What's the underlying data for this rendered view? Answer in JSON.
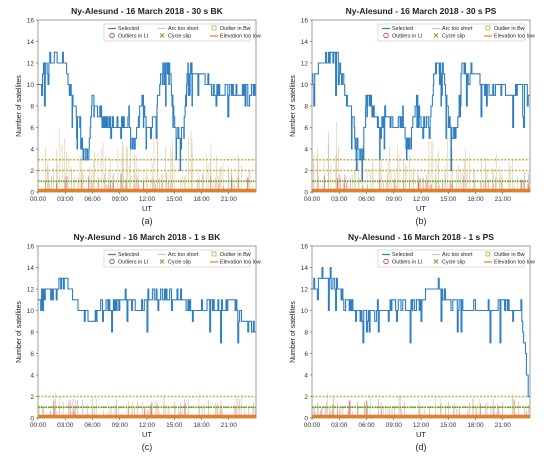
{
  "chart_data": [
    {
      "type": "line",
      "title": "Ny-Alesund - 16 March 2018 - 30 s BK",
      "panel_label": "(a)",
      "xlabel": "UT",
      "ylabel": "Number of satellites",
      "ylim": [
        0,
        16
      ],
      "xlim": [
        0,
        24
      ],
      "xticks": [
        "00:00",
        "03:00",
        "06:00",
        "09:00",
        "12:00",
        "15:00",
        "18:00",
        "21:00"
      ],
      "yticks": [
        0,
        2,
        4,
        6,
        8,
        10,
        12,
        14,
        16
      ],
      "legend": {
        "position": "top-right",
        "entries": [
          "Selected",
          "Arc too short",
          "Outlier in Bw",
          "Outliers in LI",
          "Cycle slip",
          "Elevation too low"
        ]
      },
      "selected_series": [
        [
          0,
          10
        ],
        [
          1,
          12
        ],
        [
          2,
          13
        ],
        [
          3,
          12
        ],
        [
          3.5,
          10
        ],
        [
          4,
          8
        ],
        [
          4.5,
          7
        ],
        [
          5,
          4
        ],
        [
          5.5,
          3
        ],
        [
          6,
          9
        ],
        [
          6.5,
          8
        ],
        [
          7,
          7
        ],
        [
          7.5,
          6
        ],
        [
          8,
          7
        ],
        [
          9,
          6
        ],
        [
          10,
          7
        ],
        [
          10.5,
          4
        ],
        [
          11,
          6
        ],
        [
          11.5,
          9
        ],
        [
          12,
          6
        ],
        [
          13,
          7
        ],
        [
          13.5,
          11
        ],
        [
          14,
          12
        ],
        [
          14.5,
          11
        ],
        [
          15,
          7
        ],
        [
          15.5,
          5
        ],
        [
          16,
          6
        ],
        [
          16.5,
          12
        ],
        [
          17,
          11
        ],
        [
          18,
          11
        ],
        [
          19,
          10
        ],
        [
          20,
          9
        ],
        [
          21,
          10
        ],
        [
          22,
          9
        ],
        [
          23,
          10
        ],
        [
          24,
          9
        ]
      ],
      "arc_too_short_series": [
        [
          0,
          3
        ],
        [
          1,
          4
        ],
        [
          2,
          5
        ],
        [
          3,
          6
        ],
        [
          4,
          2
        ],
        [
          5,
          3
        ],
        [
          6,
          4
        ],
        [
          7,
          5
        ],
        [
          8,
          3
        ],
        [
          9,
          4
        ],
        [
          10,
          6
        ],
        [
          11,
          3
        ],
        [
          12,
          2
        ],
        [
          13,
          5
        ],
        [
          14,
          4
        ],
        [
          15,
          6
        ],
        [
          16,
          3
        ],
        [
          17,
          5
        ],
        [
          18,
          2
        ],
        [
          19,
          4
        ],
        [
          20,
          3
        ],
        [
          21,
          2
        ],
        [
          22,
          3
        ],
        [
          23,
          2
        ],
        [
          24,
          1
        ]
      ],
      "outlier_bw_level": [
        3,
        2
      ],
      "cycle_slip_level": 1,
      "elevation_too_low_level": 0
    },
    {
      "type": "line",
      "title": "Ny-Alesund - 16 March 2018 - 30 s PS",
      "panel_label": "(b)",
      "xlabel": "UT",
      "ylabel": "Number of satellites",
      "ylim": [
        0,
        16
      ],
      "xlim": [
        0,
        24
      ],
      "xticks": [
        "00:00",
        "03:00",
        "06:00",
        "09:00",
        "12:00",
        "15:00",
        "18:00",
        "21:00"
      ],
      "yticks": [
        0,
        2,
        4,
        6,
        8,
        10,
        12,
        14,
        16
      ],
      "legend": {
        "position": "top-right",
        "entries": [
          "Selected",
          "Arc too short",
          "Outlier in Bw",
          "Outliers in LI",
          "Cycle slip",
          "Elevation too low"
        ]
      },
      "selected_series": [
        [
          0,
          10
        ],
        [
          1,
          12
        ],
        [
          2,
          13
        ],
        [
          3,
          12
        ],
        [
          3.5,
          10
        ],
        [
          4,
          8
        ],
        [
          4.5,
          7
        ],
        [
          5,
          4
        ],
        [
          5.5,
          3
        ],
        [
          6,
          9
        ],
        [
          6.5,
          8
        ],
        [
          7,
          7
        ],
        [
          7.5,
          6
        ],
        [
          8,
          7
        ],
        [
          9,
          6
        ],
        [
          10,
          7
        ],
        [
          10.5,
          4
        ],
        [
          11,
          6
        ],
        [
          11.5,
          9
        ],
        [
          12,
          6
        ],
        [
          13,
          7
        ],
        [
          13.5,
          11
        ],
        [
          14,
          12
        ],
        [
          14.5,
          11
        ],
        [
          15,
          7
        ],
        [
          15.5,
          5
        ],
        [
          16,
          6
        ],
        [
          16.5,
          12
        ],
        [
          17,
          11
        ],
        [
          18,
          11
        ],
        [
          19,
          10
        ],
        [
          20,
          9
        ],
        [
          21,
          10
        ],
        [
          22,
          9
        ],
        [
          23,
          10
        ],
        [
          24,
          9
        ]
      ],
      "arc_too_short_series": [
        [
          0,
          3
        ],
        [
          1,
          4
        ],
        [
          2,
          5
        ],
        [
          3,
          6
        ],
        [
          4,
          2
        ],
        [
          5,
          3
        ],
        [
          6,
          4
        ],
        [
          7,
          5
        ],
        [
          8,
          3
        ],
        [
          9,
          4
        ],
        [
          10,
          6
        ],
        [
          11,
          3
        ],
        [
          12,
          2
        ],
        [
          13,
          5
        ],
        [
          14,
          4
        ],
        [
          15,
          6
        ],
        [
          16,
          3
        ],
        [
          17,
          5
        ],
        [
          18,
          2
        ],
        [
          19,
          4
        ],
        [
          20,
          3
        ],
        [
          21,
          2
        ],
        [
          22,
          3
        ],
        [
          23,
          2
        ],
        [
          24,
          1
        ]
      ],
      "outlier_bw_level": [
        3,
        2
      ],
      "cycle_slip_level": 1,
      "elevation_too_low_level": 0
    },
    {
      "type": "line",
      "title": "Ny-Alesund - 16 March 2018 - 1 s BK",
      "panel_label": "(c)",
      "xlabel": "UT",
      "ylabel": "Number of satellites",
      "ylim": [
        0,
        16
      ],
      "xlim": [
        0,
        24
      ],
      "xticks": [
        "00:00",
        "03:00",
        "06:00",
        "09:00",
        "12:00",
        "15:00",
        "18:00",
        "21:00"
      ],
      "yticks": [
        0,
        2,
        4,
        6,
        8,
        10,
        12,
        14,
        16
      ],
      "legend": {
        "position": "top-right",
        "entries": [
          "Selected",
          "Arc too short",
          "Outlier in Bw",
          "Outliers in LI",
          "Cycle slip",
          "Elevation too low"
        ]
      },
      "selected_series": [
        [
          0,
          11
        ],
        [
          1,
          12
        ],
        [
          2,
          12
        ],
        [
          3,
          13
        ],
        [
          4,
          11
        ],
        [
          5,
          10
        ],
        [
          6,
          9
        ],
        [
          7,
          11
        ],
        [
          8,
          10
        ],
        [
          9,
          11
        ],
        [
          10,
          11
        ],
        [
          11,
          10
        ],
        [
          12,
          11
        ],
        [
          13,
          11
        ],
        [
          14,
          12
        ],
        [
          15,
          11
        ],
        [
          16,
          11
        ],
        [
          17,
          10
        ],
        [
          18,
          10
        ],
        [
          19,
          11
        ],
        [
          20,
          10
        ],
        [
          21,
          11
        ],
        [
          22,
          10
        ],
        [
          23,
          9
        ],
        [
          24,
          8
        ]
      ],
      "arc_too_short_series": [
        [
          0,
          1
        ],
        [
          2,
          2
        ],
        [
          4,
          1
        ],
        [
          6,
          2
        ],
        [
          8,
          1
        ],
        [
          10,
          2
        ],
        [
          12,
          1
        ],
        [
          14,
          2
        ],
        [
          16,
          1
        ],
        [
          18,
          2
        ],
        [
          20,
          1
        ],
        [
          22,
          2
        ],
        [
          24,
          1
        ]
      ],
      "outlier_bw_level": [
        2,
        1
      ],
      "cycle_slip_level": 1,
      "elevation_too_low_level": 0
    },
    {
      "type": "line",
      "title": "Ny-Alesund - 16 March 2018 - 1 s PS",
      "panel_label": "(d)",
      "xlabel": "UT",
      "ylabel": "Number of satellites",
      "ylim": [
        0,
        16
      ],
      "xlim": [
        0,
        24
      ],
      "xticks": [
        "00:00",
        "03:00",
        "06:00",
        "09:00",
        "12:00",
        "15:00",
        "18:00",
        "21:00"
      ],
      "yticks": [
        0,
        2,
        4,
        6,
        8,
        10,
        12,
        14,
        16
      ],
      "legend": {
        "position": "top-right",
        "entries": [
          "Selected",
          "Arc too short",
          "Outlier in Bw",
          "Outliers in LI",
          "Cycle slip",
          "Elevation too low"
        ]
      },
      "selected_series": [
        [
          0,
          12
        ],
        [
          1,
          13
        ],
        [
          2,
          13
        ],
        [
          3,
          12
        ],
        [
          4,
          10
        ],
        [
          5,
          10
        ],
        [
          6,
          9
        ],
        [
          7,
          10
        ],
        [
          8,
          10
        ],
        [
          9,
          11
        ],
        [
          10,
          11
        ],
        [
          11,
          10
        ],
        [
          12,
          11
        ],
        [
          13,
          12
        ],
        [
          14,
          12
        ],
        [
          15,
          11
        ],
        [
          16,
          11
        ],
        [
          17,
          10
        ],
        [
          18,
          10
        ],
        [
          19,
          10
        ],
        [
          20,
          10
        ],
        [
          21,
          11
        ],
        [
          22,
          10
        ],
        [
          23,
          10
        ],
        [
          24,
          1
        ]
      ],
      "arc_too_short_series": [
        [
          0,
          1
        ],
        [
          2,
          2
        ],
        [
          4,
          1
        ],
        [
          6,
          2
        ],
        [
          8,
          1
        ],
        [
          10,
          2
        ],
        [
          12,
          1
        ],
        [
          14,
          2
        ],
        [
          16,
          1
        ],
        [
          18,
          2
        ],
        [
          20,
          1
        ],
        [
          22,
          2
        ],
        [
          24,
          1
        ]
      ],
      "outlier_bw_level": [
        2,
        1
      ],
      "cycle_slip_level": 1,
      "elevation_too_low_level": 0
    }
  ],
  "colors": {
    "selected": "#2e7fc3",
    "arc_too_short": "#d9c59a",
    "outlier_bw": "#b8b34a",
    "outliers_li": "#b5344a",
    "cycle_slip": "#6a9f2a",
    "elevation_too_low": "#e67e22",
    "axis": "#555555"
  }
}
